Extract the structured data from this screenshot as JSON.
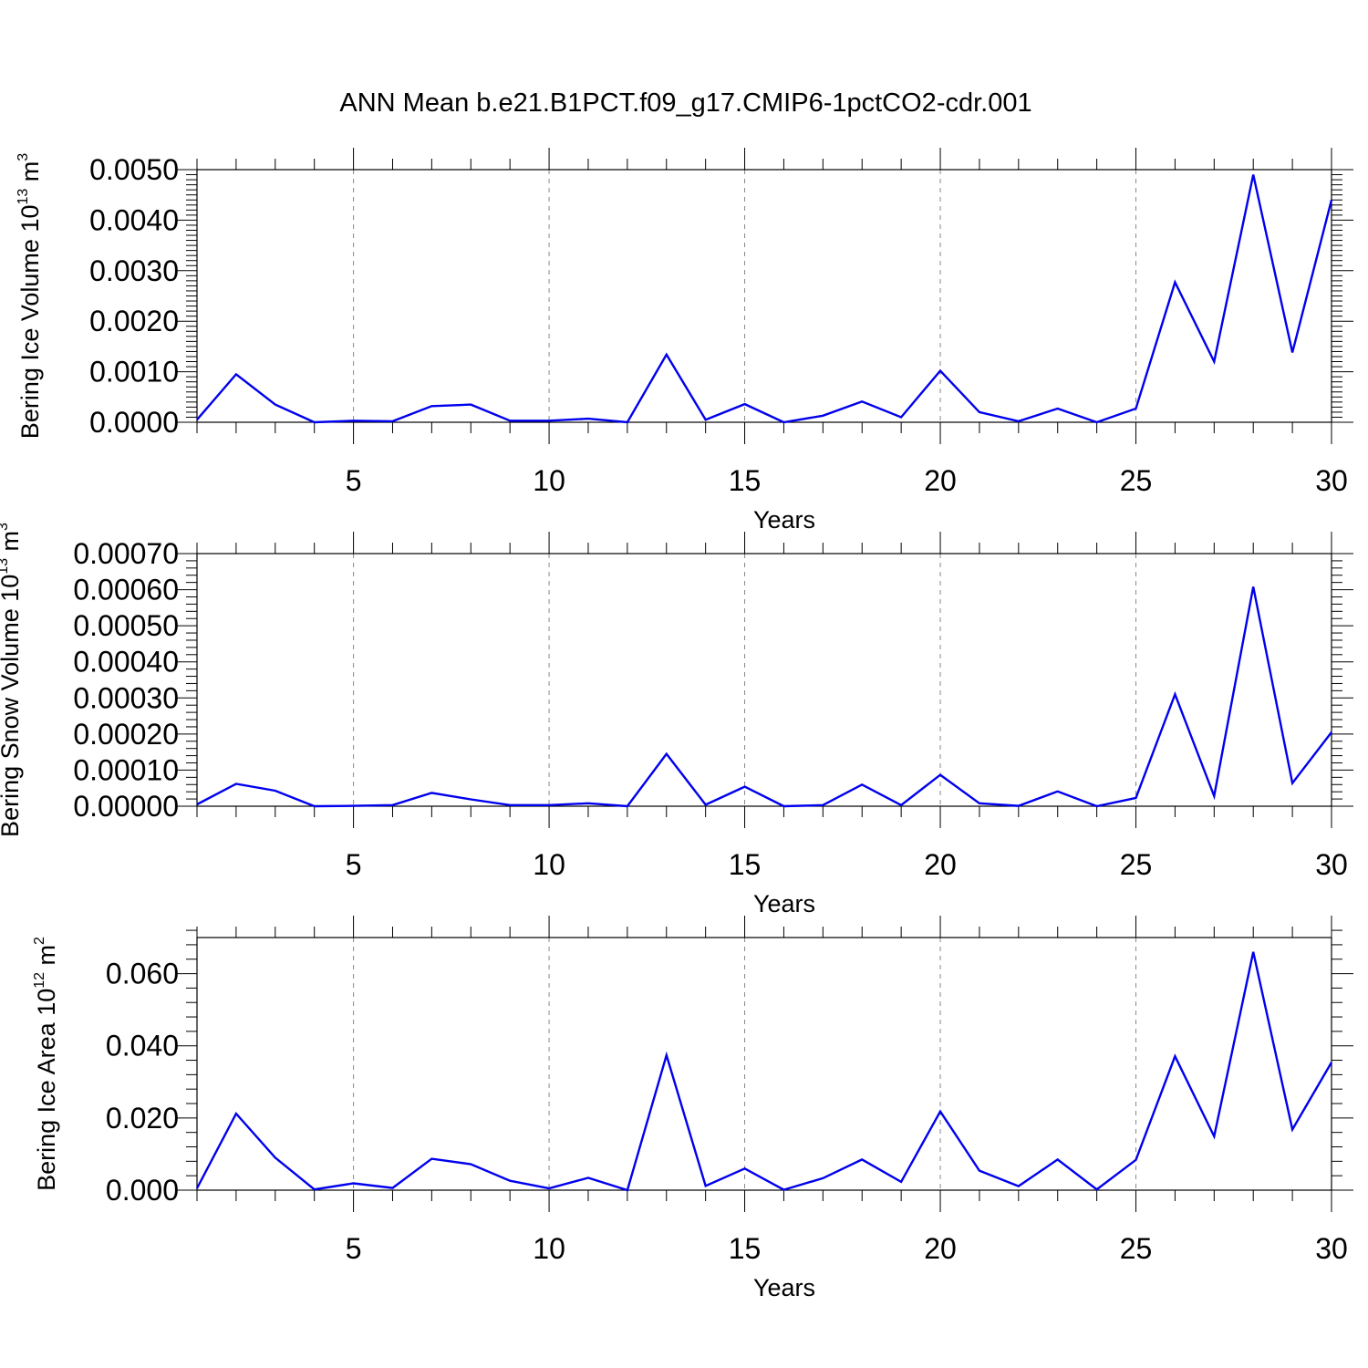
{
  "figure_title": "ANN Mean b.e21.B1PCT.f09_g17.CMIP6-1pctCO2-cdr.001",
  "colors": {
    "line": "#0000ee",
    "axes": "#000000",
    "grid": "#888888",
    "background": "#ffffff"
  },
  "chart_data": [
    {
      "type": "line",
      "title": "ANN Mean b.e21.B1PCT.f09_g17.CMIP6-1pctCO2-cdr.001",
      "xlabel": "Years",
      "ylabel": {
        "main": "Bering Ice Volume 10",
        "exp": "13",
        "unit": " m",
        "unit_exp": "3"
      },
      "xlim": [
        1,
        30
      ],
      "ylim": [
        0,
        0.005
      ],
      "xticks": [
        5,
        10,
        15,
        20,
        25,
        30
      ],
      "xtick_labels": [
        "5",
        "10",
        "15",
        "20",
        "25",
        "30"
      ],
      "yticks": [
        0,
        0.001,
        0.002,
        0.003,
        0.004,
        0.005
      ],
      "ytick_labels": [
        "0.0000",
        "0.0010",
        "0.0020",
        "0.0030",
        "0.0040",
        "0.0050"
      ],
      "grid": "vertical dashed at major x ticks",
      "x": [
        1,
        2,
        3,
        4,
        5,
        6,
        7,
        8,
        9,
        10,
        11,
        12,
        13,
        14,
        15,
        16,
        17,
        18,
        19,
        20,
        21,
        22,
        23,
        24,
        25,
        26,
        27,
        28,
        29,
        30
      ],
      "values": [
        5e-05,
        0.00095,
        0.00035,
        0.0,
        3e-05,
        2e-05,
        0.00032,
        0.00035,
        3e-05,
        3e-05,
        7e-05,
        0.0,
        0.00134,
        5e-05,
        0.00036,
        0.0,
        0.00013,
        0.00041,
        0.0001,
        0.00102,
        0.0002,
        2e-05,
        0.00027,
        0.0,
        0.00027,
        0.00277,
        0.0012,
        0.0049,
        0.00138,
        0.0044
      ]
    },
    {
      "type": "line",
      "xlabel": "Years",
      "ylabel": {
        "main": "Bering Snow Volume 10",
        "exp": "13",
        "unit": " m",
        "unit_exp": "3"
      },
      "xlim": [
        1,
        30
      ],
      "ylim": [
        0,
        0.0007
      ],
      "xticks": [
        5,
        10,
        15,
        20,
        25,
        30
      ],
      "xtick_labels": [
        "5",
        "10",
        "15",
        "20",
        "25",
        "30"
      ],
      "yticks": [
        0,
        0.0001,
        0.0002,
        0.0003,
        0.0004,
        0.0005,
        0.0006,
        0.0007
      ],
      "ytick_labels": [
        "0.00000",
        "0.00010",
        "0.00020",
        "0.00030",
        "0.00040",
        "0.00050",
        "0.00060",
        "0.00070"
      ],
      "grid": "vertical dashed at major x ticks",
      "x": [
        1,
        2,
        3,
        4,
        5,
        6,
        7,
        8,
        9,
        10,
        11,
        12,
        13,
        14,
        15,
        16,
        17,
        18,
        19,
        20,
        21,
        22,
        23,
        24,
        25,
        26,
        27,
        28,
        29,
        30
      ],
      "values": [
        5e-06,
        6.2e-05,
        4.3e-05,
        0.0,
        1e-06,
        3e-06,
        3.7e-05,
        1.9e-05,
        3e-06,
        3e-06,
        8e-06,
        0.0,
        0.000145,
        4e-06,
        5.4e-05,
        0.0,
        3e-06,
        6e-05,
        3e-06,
        8.7e-05,
        8e-06,
        1e-06,
        4.1e-05,
        0.0,
        2.3e-05,
        0.00031,
        2.8e-05,
        0.000608,
        6.4e-05,
        0.000205
      ]
    },
    {
      "type": "line",
      "xlabel": "Years",
      "ylabel": {
        "main": "Bering Ice Area 10",
        "exp": "12",
        "unit": " m",
        "unit_exp": "2"
      },
      "xlim": [
        1,
        30
      ],
      "ylim": [
        0,
        0.07
      ],
      "xticks": [
        5,
        10,
        15,
        20,
        25,
        30
      ],
      "xtick_labels": [
        "5",
        "10",
        "15",
        "20",
        "25",
        "30"
      ],
      "yticks": [
        0,
        0.02,
        0.04,
        0.06
      ],
      "ytick_labels": [
        "0.000",
        "0.020",
        "0.040",
        "0.060"
      ],
      "grid": "vertical dashed at major x ticks",
      "x": [
        1,
        2,
        3,
        4,
        5,
        6,
        7,
        8,
        9,
        10,
        11,
        12,
        13,
        14,
        15,
        16,
        17,
        18,
        19,
        20,
        21,
        22,
        23,
        24,
        25,
        26,
        27,
        28,
        29,
        30
      ],
      "values": [
        0.0005,
        0.0212,
        0.009,
        0.0002,
        0.0019,
        0.0006,
        0.0087,
        0.0072,
        0.0026,
        0.0005,
        0.0034,
        0.0,
        0.0374,
        0.0012,
        0.006,
        0.0001,
        0.0033,
        0.0085,
        0.0023,
        0.0218,
        0.0054,
        0.0011,
        0.0085,
        0.0002,
        0.0084,
        0.0371,
        0.0149,
        0.066,
        0.0168,
        0.0354
      ]
    }
  ]
}
